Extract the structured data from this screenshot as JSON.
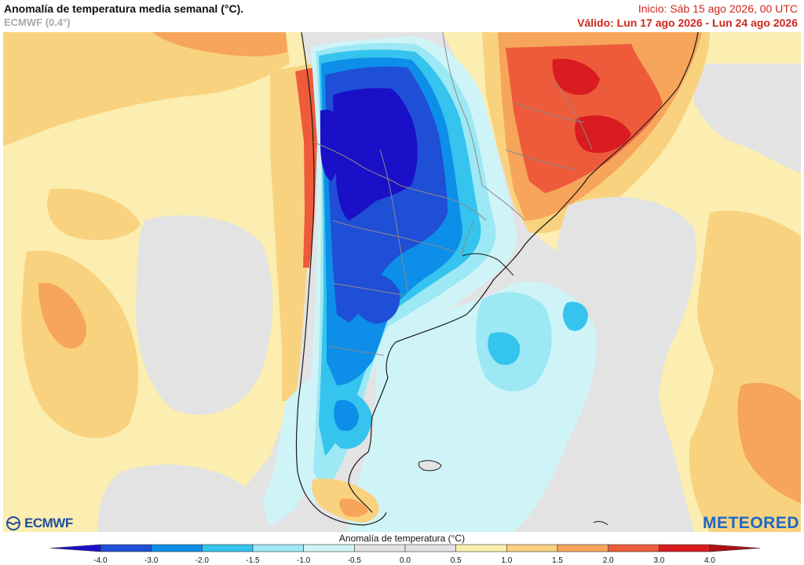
{
  "header": {
    "title": "Anomalía de temperatura media semanal (°C).",
    "model": "ECMWF (0.4°)",
    "init": "Inicio: Sáb 15 ago 2026, 00 UTC",
    "valid": "Válido: Lun 17 ago 2026 - Lun 24 ago 2026"
  },
  "logos": {
    "left": "ECMWF",
    "right": "METEORED"
  },
  "colorbar": {
    "title": "Anomalía de temperatura (°C)",
    "ticks": [
      "-4.0",
      "-3.0",
      "-2.0",
      "-1.5",
      "-1.0",
      "-0.5",
      "0.0",
      "0.5",
      "1.0",
      "1.5",
      "2.0",
      "3.0",
      "4.0"
    ],
    "colors": [
      "#1a10c8",
      "#1f4fd6",
      "#0d8ee8",
      "#34c4ee",
      "#9ce8f4",
      "#cff4f8",
      "#e3e3e3",
      "#e3e3e3",
      "#fbf0b0",
      "#fbd07d",
      "#f6a55a",
      "#ee5b3a",
      "#d81c1f",
      "#b10f17"
    ]
  },
  "map": {
    "region": "Sudamérica austral",
    "colors": {
      "neutral": "#e3e3e3",
      "light_warm": "#fbeeb0",
      "warm": "#f9d27f",
      "orange": "#f6a55a",
      "red": "#ee5b3a",
      "deep_red": "#d81c1f",
      "very_light_cool": "#cff4f8",
      "light_cool": "#9ce8f4",
      "cool": "#34c4ee",
      "blue": "#0d8ee8",
      "dark_blue": "#1f4fd6",
      "deep_blue": "#1a10c8",
      "border": "#8a8a8a",
      "coast": "#1a1a1a"
    }
  }
}
